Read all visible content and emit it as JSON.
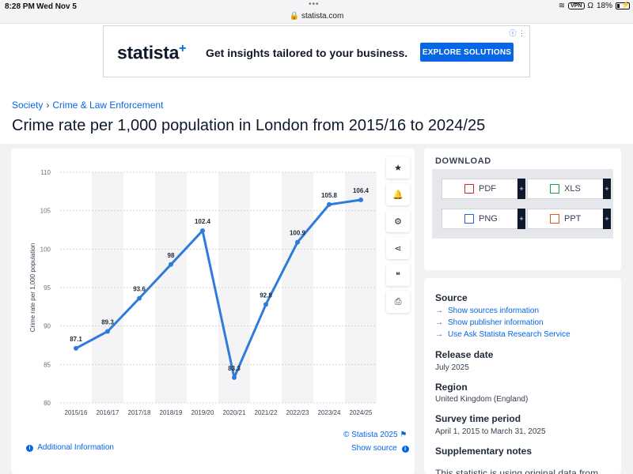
{
  "status_bar": {
    "time": "8:28 PM",
    "date": "Wed Nov 5",
    "url": "statista.com",
    "vpn": "VPN",
    "battery": "18%"
  },
  "ad": {
    "logo": "statista",
    "logo_plus": "+",
    "text": "Get insights tailored to your business.",
    "button": "EXPLORE SOLUTIONS",
    "info_icon": "info-icon"
  },
  "breadcrumb": [
    "Society",
    "Crime & Law Enforcement"
  ],
  "title": "Crime rate per 1,000 population in London from 2015/16 to 2024/25",
  "chart_data": {
    "type": "line",
    "categories": [
      "2015/16",
      "2016/17",
      "2017/18",
      "2018/19",
      "2019/20",
      "2020/21",
      "2021/22",
      "2022/23",
      "2023/24",
      "2024/25"
    ],
    "values": [
      87.1,
      89.3,
      93.6,
      98,
      102.4,
      83.3,
      92.8,
      100.9,
      105.8,
      106.4
    ],
    "value_labels": [
      "87.1",
      "89.3",
      "93.6",
      "98",
      "102.4",
      "83.3",
      "92.8",
      "100.9",
      "105.8",
      "106.4"
    ],
    "ylabel": "Crime rate per 1,000 population",
    "ylim": [
      80,
      110
    ],
    "yticks": [
      80,
      85,
      90,
      95,
      100,
      105,
      110
    ],
    "grid": true,
    "line_color": "#2f7bdc",
    "band_color": "#f4f4f6"
  },
  "chart_tools": [
    "star-icon",
    "bell-icon",
    "gear-icon",
    "share-icon",
    "quote-icon",
    "print-icon"
  ],
  "chart_footer": {
    "copyright": "© Statista 2025",
    "additional": "Additional Information",
    "show_source": "Show source"
  },
  "download": {
    "title": "DOWNLOAD",
    "buttons": [
      "PDF",
      "XLS",
      "PNG",
      "PPT"
    ],
    "plus": "+"
  },
  "meta": {
    "source_heading": "Source",
    "links": [
      "Show sources information",
      "Show publisher information",
      "Use Ask Statista Research Service"
    ],
    "release_heading": "Release date",
    "release": "July 2025",
    "region_heading": "Region",
    "region": "United Kingdom (England)",
    "survey_heading": "Survey time period",
    "survey": "April 1, 2015 to March 31, 2025",
    "supp_heading": "Supplementary notes",
    "supp_note": "This statistic is using original data from the Office for National Statistics and"
  },
  "colors": {
    "brand": "#0666e5",
    "navy": "#0e1a2b"
  }
}
